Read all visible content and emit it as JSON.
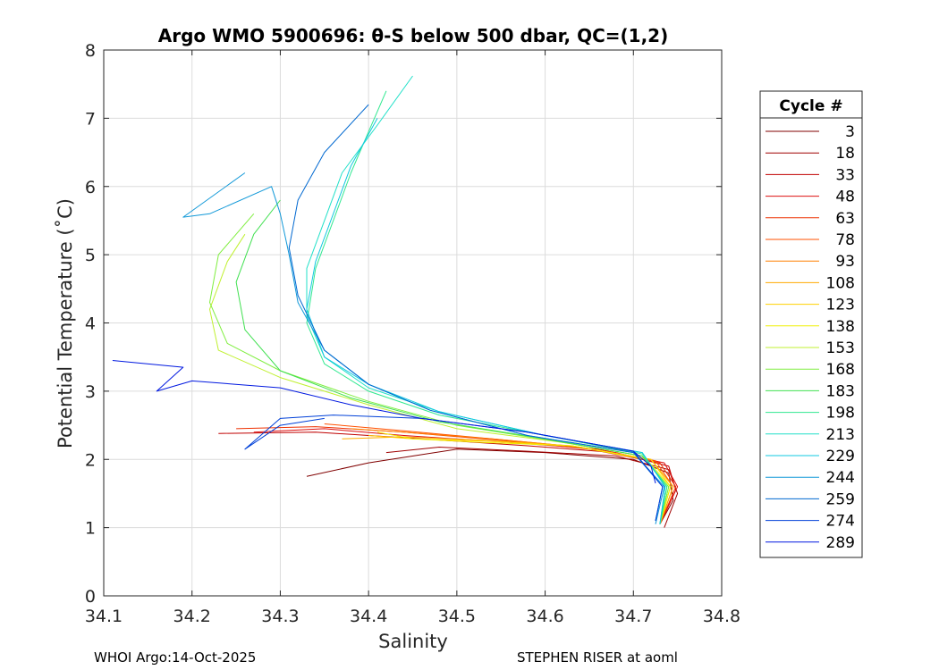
{
  "chart_data": {
    "type": "line",
    "title": "Argo WMO 5900696: θ-S below 500 dbar,  QC=(1,2)",
    "xlabel": "Salinity",
    "ylabel": "Potential Temperature (˚C)",
    "xlim": [
      34.1,
      34.8
    ],
    "ylim": [
      0,
      8
    ],
    "xticks": [
      "34.1",
      "34.2",
      "34.3",
      "34.4",
      "34.5",
      "34.6",
      "34.7",
      "34.8"
    ],
    "yticks": [
      "0",
      "1",
      "2",
      "3",
      "4",
      "5",
      "6",
      "7",
      "8"
    ],
    "grid": true,
    "legend": {
      "title": "Cycle #",
      "placement": "right-outside",
      "entries": [
        {
          "label": "3",
          "color": "#800000"
        },
        {
          "label": "18",
          "color": "#a00000"
        },
        {
          "label": "33",
          "color": "#c00000"
        },
        {
          "label": "48",
          "color": "#dd1010"
        },
        {
          "label": "63",
          "color": "#ee3000"
        },
        {
          "label": "78",
          "color": "#ff5000"
        },
        {
          "label": "93",
          "color": "#ff8000"
        },
        {
          "label": "108",
          "color": "#ffaa00"
        },
        {
          "label": "123",
          "color": "#ffd000"
        },
        {
          "label": "138",
          "color": "#f0f000"
        },
        {
          "label": "153",
          "color": "#c0f030"
        },
        {
          "label": "168",
          "color": "#80ee40"
        },
        {
          "label": "183",
          "color": "#40e050"
        },
        {
          "label": "198",
          "color": "#30e890"
        },
        {
          "label": "213",
          "color": "#20e0c8"
        },
        {
          "label": "229",
          "color": "#10c8e0"
        },
        {
          "label": "244",
          "color": "#1098d8"
        },
        {
          "label": "259",
          "color": "#0068d0"
        },
        {
          "label": "274",
          "color": "#0040d8"
        },
        {
          "label": "289",
          "color": "#0018e0"
        }
      ]
    },
    "series": [
      {
        "name": "3",
        "color": "#800000",
        "points": [
          [
            34.73,
            1.05
          ],
          [
            34.745,
            1.4
          ],
          [
            34.74,
            1.8
          ],
          [
            34.7,
            2.0
          ],
          [
            34.6,
            2.1
          ],
          [
            34.5,
            2.15
          ],
          [
            34.4,
            1.95
          ],
          [
            34.33,
            1.75
          ]
        ]
      },
      {
        "name": "18",
        "color": "#a00000",
        "points": [
          [
            34.735,
            1.0
          ],
          [
            34.75,
            1.5
          ],
          [
            34.74,
            1.85
          ],
          [
            34.68,
            2.05
          ],
          [
            34.58,
            2.12
          ],
          [
            34.48,
            2.18
          ],
          [
            34.42,
            2.1
          ]
        ]
      },
      {
        "name": "33",
        "color": "#c00000",
        "points": [
          [
            34.73,
            1.05
          ],
          [
            34.748,
            1.55
          ],
          [
            34.74,
            1.9
          ],
          [
            34.68,
            2.1
          ],
          [
            34.58,
            2.2
          ],
          [
            34.46,
            2.3
          ],
          [
            34.34,
            2.4
          ],
          [
            34.23,
            2.38
          ]
        ]
      },
      {
        "name": "48",
        "color": "#dd1010",
        "points": [
          [
            34.73,
            1.05
          ],
          [
            34.75,
            1.6
          ],
          [
            34.735,
            1.95
          ],
          [
            34.66,
            2.15
          ],
          [
            34.56,
            2.25
          ],
          [
            34.44,
            2.35
          ],
          [
            34.35,
            2.45
          ],
          [
            34.27,
            2.4
          ]
        ]
      },
      {
        "name": "63",
        "color": "#ee3000",
        "points": [
          [
            34.73,
            1.05
          ],
          [
            34.748,
            1.6
          ],
          [
            34.73,
            1.95
          ],
          [
            34.65,
            2.15
          ],
          [
            34.55,
            2.28
          ],
          [
            34.44,
            2.4
          ],
          [
            34.34,
            2.48
          ],
          [
            34.25,
            2.45
          ]
        ]
      },
      {
        "name": "78",
        "color": "#ff5000",
        "points": [
          [
            34.73,
            1.05
          ],
          [
            34.745,
            1.6
          ],
          [
            34.725,
            1.98
          ],
          [
            34.64,
            2.18
          ],
          [
            34.54,
            2.3
          ],
          [
            34.44,
            2.42
          ],
          [
            34.35,
            2.52
          ]
        ]
      },
      {
        "name": "93",
        "color": "#ff8000",
        "points": [
          [
            34.73,
            1.05
          ],
          [
            34.745,
            1.6
          ],
          [
            34.72,
            2.0
          ],
          [
            34.64,
            2.18
          ],
          [
            34.54,
            2.3
          ],
          [
            34.44,
            2.4
          ],
          [
            34.38,
            2.45
          ]
        ]
      },
      {
        "name": "108",
        "color": "#ffaa00",
        "points": [
          [
            34.73,
            1.05
          ],
          [
            34.745,
            1.6
          ],
          [
            34.72,
            2.0
          ],
          [
            34.63,
            2.2
          ],
          [
            34.53,
            2.28
          ],
          [
            34.44,
            2.33
          ],
          [
            34.37,
            2.3
          ]
        ]
      },
      {
        "name": "123",
        "color": "#ffd000",
        "points": [
          [
            34.73,
            1.05
          ],
          [
            34.742,
            1.6
          ],
          [
            34.72,
            2.0
          ],
          [
            34.63,
            2.2
          ],
          [
            34.53,
            2.27
          ],
          [
            34.45,
            2.3
          ],
          [
            34.4,
            2.35
          ]
        ]
      },
      {
        "name": "138",
        "color": "#f0f000",
        "points": [
          [
            34.73,
            1.05
          ],
          [
            34.742,
            1.6
          ],
          [
            34.715,
            2.0
          ],
          [
            34.63,
            2.2
          ],
          [
            34.53,
            2.25
          ],
          [
            34.45,
            2.3
          ],
          [
            34.41,
            2.4
          ]
        ]
      },
      {
        "name": "153",
        "color": "#c0f030",
        "points": [
          [
            34.73,
            1.05
          ],
          [
            34.74,
            1.6
          ],
          [
            34.71,
            2.05
          ],
          [
            34.62,
            2.25
          ],
          [
            34.5,
            2.45
          ],
          [
            34.4,
            2.8
          ],
          [
            34.3,
            3.2
          ],
          [
            34.23,
            3.6
          ],
          [
            34.22,
            4.2
          ],
          [
            34.24,
            4.9
          ],
          [
            34.26,
            5.3
          ]
        ]
      },
      {
        "name": "168",
        "color": "#80ee40",
        "points": [
          [
            34.73,
            1.05
          ],
          [
            34.74,
            1.6
          ],
          [
            34.71,
            2.05
          ],
          [
            34.62,
            2.25
          ],
          [
            34.5,
            2.5
          ],
          [
            34.4,
            2.85
          ],
          [
            34.3,
            3.3
          ],
          [
            34.24,
            3.7
          ],
          [
            34.22,
            4.3
          ],
          [
            34.23,
            5.0
          ],
          [
            34.27,
            5.6
          ]
        ]
      },
      {
        "name": "183",
        "color": "#40e050",
        "points": [
          [
            34.73,
            1.05
          ],
          [
            34.738,
            1.6
          ],
          [
            34.71,
            2.05
          ],
          [
            34.6,
            2.3
          ],
          [
            34.48,
            2.55
          ],
          [
            34.38,
            2.9
          ],
          [
            34.3,
            3.3
          ],
          [
            34.26,
            3.9
          ],
          [
            34.25,
            4.6
          ],
          [
            34.27,
            5.3
          ],
          [
            34.3,
            5.8
          ]
        ]
      },
      {
        "name": "198",
        "color": "#30e890",
        "points": [
          [
            34.73,
            1.05
          ],
          [
            34.738,
            1.6
          ],
          [
            34.71,
            2.08
          ],
          [
            34.6,
            2.35
          ],
          [
            34.48,
            2.65
          ],
          [
            34.4,
            3.0
          ],
          [
            34.35,
            3.4
          ],
          [
            34.33,
            4.0
          ],
          [
            34.34,
            4.8
          ],
          [
            34.36,
            5.5
          ],
          [
            34.38,
            6.2
          ],
          [
            34.4,
            6.8
          ],
          [
            34.42,
            7.4
          ]
        ]
      },
      {
        "name": "213",
        "color": "#20e0c8",
        "points": [
          [
            34.73,
            1.05
          ],
          [
            34.736,
            1.6
          ],
          [
            34.71,
            2.1
          ],
          [
            34.6,
            2.35
          ],
          [
            34.48,
            2.7
          ],
          [
            34.4,
            3.05
          ],
          [
            34.35,
            3.5
          ],
          [
            34.33,
            4.1
          ],
          [
            34.33,
            4.8
          ],
          [
            34.35,
            5.5
          ],
          [
            34.37,
            6.2
          ],
          [
            34.41,
            6.9
          ],
          [
            34.45,
            7.62
          ]
        ]
      },
      {
        "name": "229",
        "color": "#10c8e0",
        "points": [
          [
            34.73,
            1.05
          ],
          [
            34.736,
            1.6
          ],
          [
            34.71,
            2.1
          ],
          [
            34.6,
            2.35
          ],
          [
            34.48,
            2.7
          ],
          [
            34.4,
            3.1
          ],
          [
            34.35,
            3.5
          ],
          [
            34.33,
            4.2
          ],
          [
            34.34,
            4.9
          ],
          [
            34.36,
            5.6
          ],
          [
            34.38,
            6.3
          ],
          [
            34.41,
            7.0
          ]
        ]
      },
      {
        "name": "244",
        "color": "#1098d8",
        "points": [
          [
            34.725,
            1.05
          ],
          [
            34.735,
            1.6
          ],
          [
            34.7,
            2.1
          ],
          [
            34.58,
            2.35
          ],
          [
            34.47,
            2.72
          ],
          [
            34.4,
            3.1
          ],
          [
            34.35,
            3.6
          ],
          [
            34.32,
            4.3
          ],
          [
            34.31,
            5.0
          ],
          [
            34.3,
            5.6
          ],
          [
            34.29,
            6.0
          ],
          [
            34.22,
            5.6
          ],
          [
            34.19,
            5.55
          ],
          [
            34.26,
            6.2
          ]
        ]
      },
      {
        "name": "259",
        "color": "#0068d0",
        "points": [
          [
            34.725,
            1.1
          ],
          [
            34.733,
            1.6
          ],
          [
            34.7,
            2.1
          ],
          [
            34.58,
            2.35
          ],
          [
            34.47,
            2.72
          ],
          [
            34.4,
            3.1
          ],
          [
            34.35,
            3.6
          ],
          [
            34.32,
            4.4
          ],
          [
            34.31,
            5.1
          ],
          [
            34.32,
            5.8
          ],
          [
            34.35,
            6.5
          ],
          [
            34.4,
            7.2
          ]
        ]
      },
      {
        "name": "274",
        "color": "#0040d8",
        "points": [
          [
            34.725,
            1.1
          ],
          [
            34.733,
            1.6
          ],
          [
            34.7,
            2.12
          ],
          [
            34.58,
            2.4
          ],
          [
            34.46,
            2.6
          ],
          [
            34.36,
            2.65
          ],
          [
            34.3,
            2.6
          ],
          [
            34.26,
            2.15
          ],
          [
            34.3,
            2.5
          ],
          [
            34.35,
            2.6
          ]
        ]
      },
      {
        "name": "289",
        "color": "#0018e0",
        "points": [
          [
            34.725,
            1.65
          ],
          [
            34.72,
            1.9
          ],
          [
            34.7,
            2.12
          ],
          [
            34.58,
            2.4
          ],
          [
            34.46,
            2.6
          ],
          [
            34.38,
            2.8
          ],
          [
            34.3,
            3.05
          ],
          [
            34.2,
            3.15
          ],
          [
            34.16,
            3.0
          ],
          [
            34.19,
            3.35
          ],
          [
            34.11,
            3.45
          ]
        ]
      }
    ]
  },
  "footer": {
    "left": "WHOI Argo:14-Oct-2025",
    "right": "STEPHEN RISER at aoml"
  }
}
